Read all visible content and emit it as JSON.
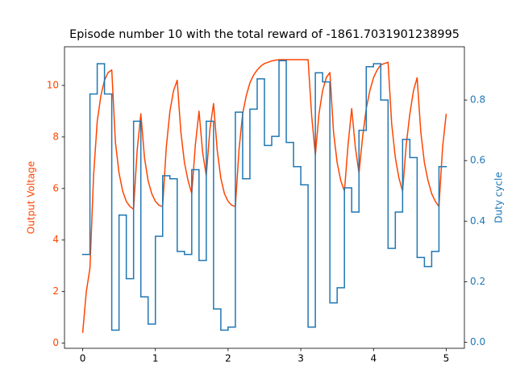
{
  "chart_data": {
    "type": "line",
    "title": "Episode number 10 with the total reward of -1861.7031901238995",
    "ylabel": "Output Voltage",
    "y2label": "Duty cycle",
    "xlim": [
      -0.25,
      5.25
    ],
    "xticks": [
      0,
      1,
      2,
      3,
      4,
      5
    ],
    "ylim": [
      -0.2,
      11.5
    ],
    "yticks": [
      0,
      2,
      4,
      6,
      8,
      10
    ],
    "y2lim": [
      -0.02,
      0.976
    ],
    "y2ticks": [
      {
        "value": 0,
        "label": "0.0"
      },
      0.2,
      0.4,
      0.6,
      0.8
    ],
    "grid": false,
    "series": [
      {
        "name": "Output Voltage",
        "color": "#ff4500",
        "axis": "y",
        "drawstyle": "default",
        "x": [
          0,
          0.05,
          0.1,
          0.15,
          0.2,
          0.25,
          0.3,
          0.35,
          0.4,
          0.45,
          0.5,
          0.55,
          0.6,
          0.65,
          0.7,
          0.75,
          0.8,
          0.85,
          0.9,
          0.95,
          1.0,
          1.05,
          1.1,
          1.15,
          1.2,
          1.25,
          1.3,
          1.35,
          1.4,
          1.45,
          1.5,
          1.55,
          1.6,
          1.65,
          1.7,
          1.75,
          1.8,
          1.85,
          1.9,
          1.95,
          2.0,
          2.05,
          2.1,
          2.15,
          2.2,
          2.25,
          2.3,
          2.35,
          2.4,
          2.45,
          2.5,
          2.55,
          2.6,
          2.65,
          2.7,
          2.75,
          2.8,
          2.85,
          2.9,
          2.95,
          3.0,
          3.05,
          3.1,
          3.15,
          3.2,
          3.25,
          3.3,
          3.35,
          3.4,
          3.45,
          3.5,
          3.55,
          3.6,
          3.65,
          3.7,
          3.75,
          3.8,
          3.85,
          3.9,
          3.95,
          4.0,
          4.05,
          4.1,
          4.15,
          4.2,
          4.25,
          4.3,
          4.35,
          4.4,
          4.45,
          4.5,
          4.55,
          4.6,
          4.65,
          4.7,
          4.75,
          4.8,
          4.85,
          4.9,
          4.95,
          5.0
        ],
        "values": [
          0.4,
          2.0,
          2.9,
          6.5,
          8.6,
          9.6,
          10.2,
          10.5,
          10.6,
          7.8,
          6.6,
          5.9,
          5.5,
          5.3,
          5.2,
          7.5,
          8.9,
          7.2,
          6.3,
          5.8,
          5.5,
          5.35,
          5.3,
          7.6,
          9.0,
          9.8,
          10.2,
          8.2,
          7.0,
          6.3,
          5.8,
          7.7,
          9.0,
          7.4,
          6.5,
          8.3,
          9.3,
          7.5,
          6.4,
          5.8,
          5.5,
          5.35,
          5.3,
          7.5,
          8.9,
          9.6,
          10.1,
          10.4,
          10.6,
          10.75,
          10.85,
          10.9,
          10.95,
          10.98,
          11.0,
          11.0,
          11.0,
          11.0,
          11.0,
          11.0,
          11.0,
          11.0,
          11.0,
          8.8,
          7.3,
          8.9,
          9.8,
          10.3,
          10.5,
          8.2,
          7.0,
          6.3,
          5.9,
          7.7,
          9.1,
          7.6,
          6.6,
          8.0,
          9.1,
          9.8,
          10.3,
          10.6,
          10.8,
          10.85,
          10.9,
          8.5,
          7.2,
          6.4,
          5.9,
          7.7,
          8.9,
          9.8,
          10.3,
          8.2,
          7.0,
          6.3,
          5.8,
          5.5,
          5.3,
          7.6,
          8.9
        ]
      },
      {
        "name": "Duty cycle",
        "color": "#1f77b4",
        "axis": "y2",
        "drawstyle": "steps-post",
        "x": [
          0,
          0.1,
          0.2,
          0.3,
          0.4,
          0.5,
          0.6,
          0.7,
          0.8,
          0.9,
          1.0,
          1.1,
          1.2,
          1.3,
          1.4,
          1.5,
          1.6,
          1.7,
          1.8,
          1.9,
          2.0,
          2.1,
          2.2,
          2.3,
          2.4,
          2.5,
          2.6,
          2.7,
          2.8,
          2.9,
          3.0,
          3.1,
          3.2,
          3.3,
          3.4,
          3.5,
          3.6,
          3.7,
          3.8,
          3.9,
          4.0,
          4.1,
          4.2,
          4.3,
          4.4,
          4.5,
          4.6,
          4.7,
          4.8,
          4.9,
          5.0
        ],
        "values": [
          0.29,
          0.82,
          0.92,
          0.82,
          0.04,
          0.42,
          0.21,
          0.73,
          0.15,
          0.06,
          0.35,
          0.55,
          0.54,
          0.3,
          0.29,
          0.57,
          0.27,
          0.73,
          0.11,
          0.04,
          0.05,
          0.76,
          0.54,
          0.77,
          0.87,
          0.65,
          0.68,
          0.93,
          0.66,
          0.58,
          0.52,
          0.05,
          0.89,
          0.86,
          0.13,
          0.18,
          0.51,
          0.43,
          0.7,
          0.91,
          0.92,
          0.8,
          0.31,
          0.43,
          0.67,
          0.61,
          0.28,
          0.25,
          0.3,
          0.58,
          0.58
        ]
      }
    ]
  }
}
